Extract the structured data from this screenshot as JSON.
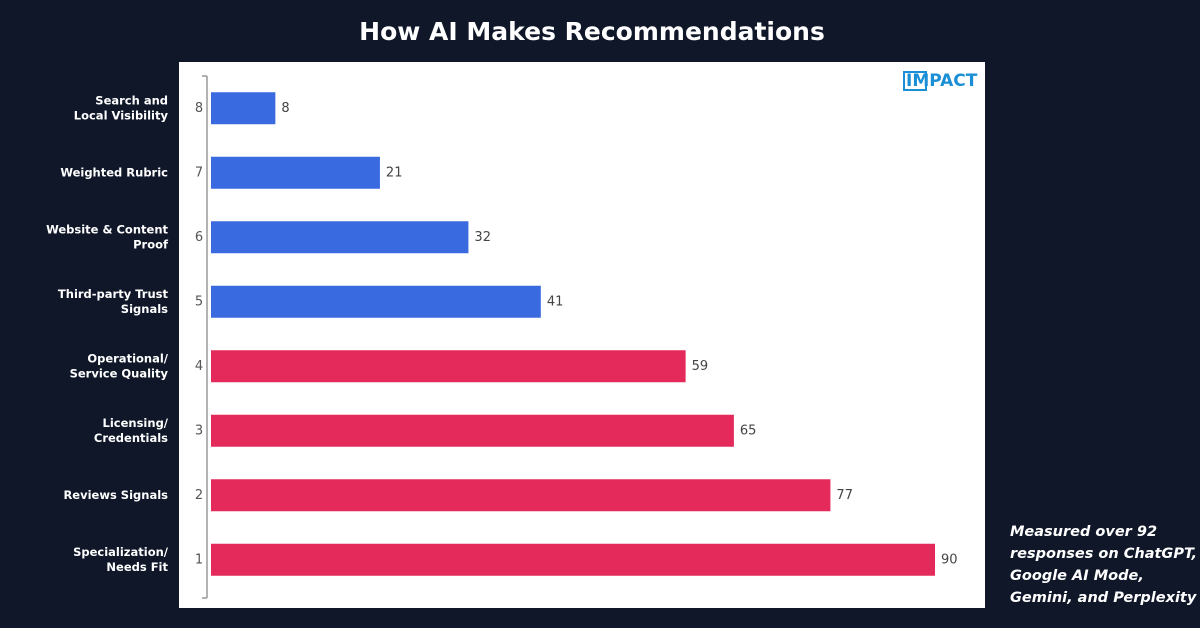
{
  "chart_data": {
    "type": "barh",
    "title": "How AI Makes Recommendations",
    "categories": [
      [
        "Search and",
        "Local Visibility"
      ],
      [
        "Weighted Rubric"
      ],
      [
        "Website & Content",
        "Proof"
      ],
      [
        "Third-party Trust",
        "Signals"
      ],
      [
        "Operational/",
        "Service Quality"
      ],
      [
        "Licensing/",
        "Credentials"
      ],
      [
        "Reviews Signals"
      ],
      [
        "Specialization/",
        "Needs Fit"
      ]
    ],
    "ranks": [
      8,
      7,
      6,
      5,
      4,
      3,
      2,
      1
    ],
    "values": [
      8,
      21,
      32,
      41,
      59,
      65,
      77,
      90
    ],
    "colors": [
      "#3a6ae0",
      "#3a6ae0",
      "#3a6ae0",
      "#3a6ae0",
      "#e32a5a",
      "#e32a5a",
      "#e32a5a",
      "#e32a5a"
    ],
    "xlim": [
      0,
      90
    ],
    "brand": "IMPACT",
    "note": [
      "Measured over 92",
      "responses on ChatGPT,",
      "Google AI Mode,",
      "Gemini, and Perplexity"
    ]
  }
}
